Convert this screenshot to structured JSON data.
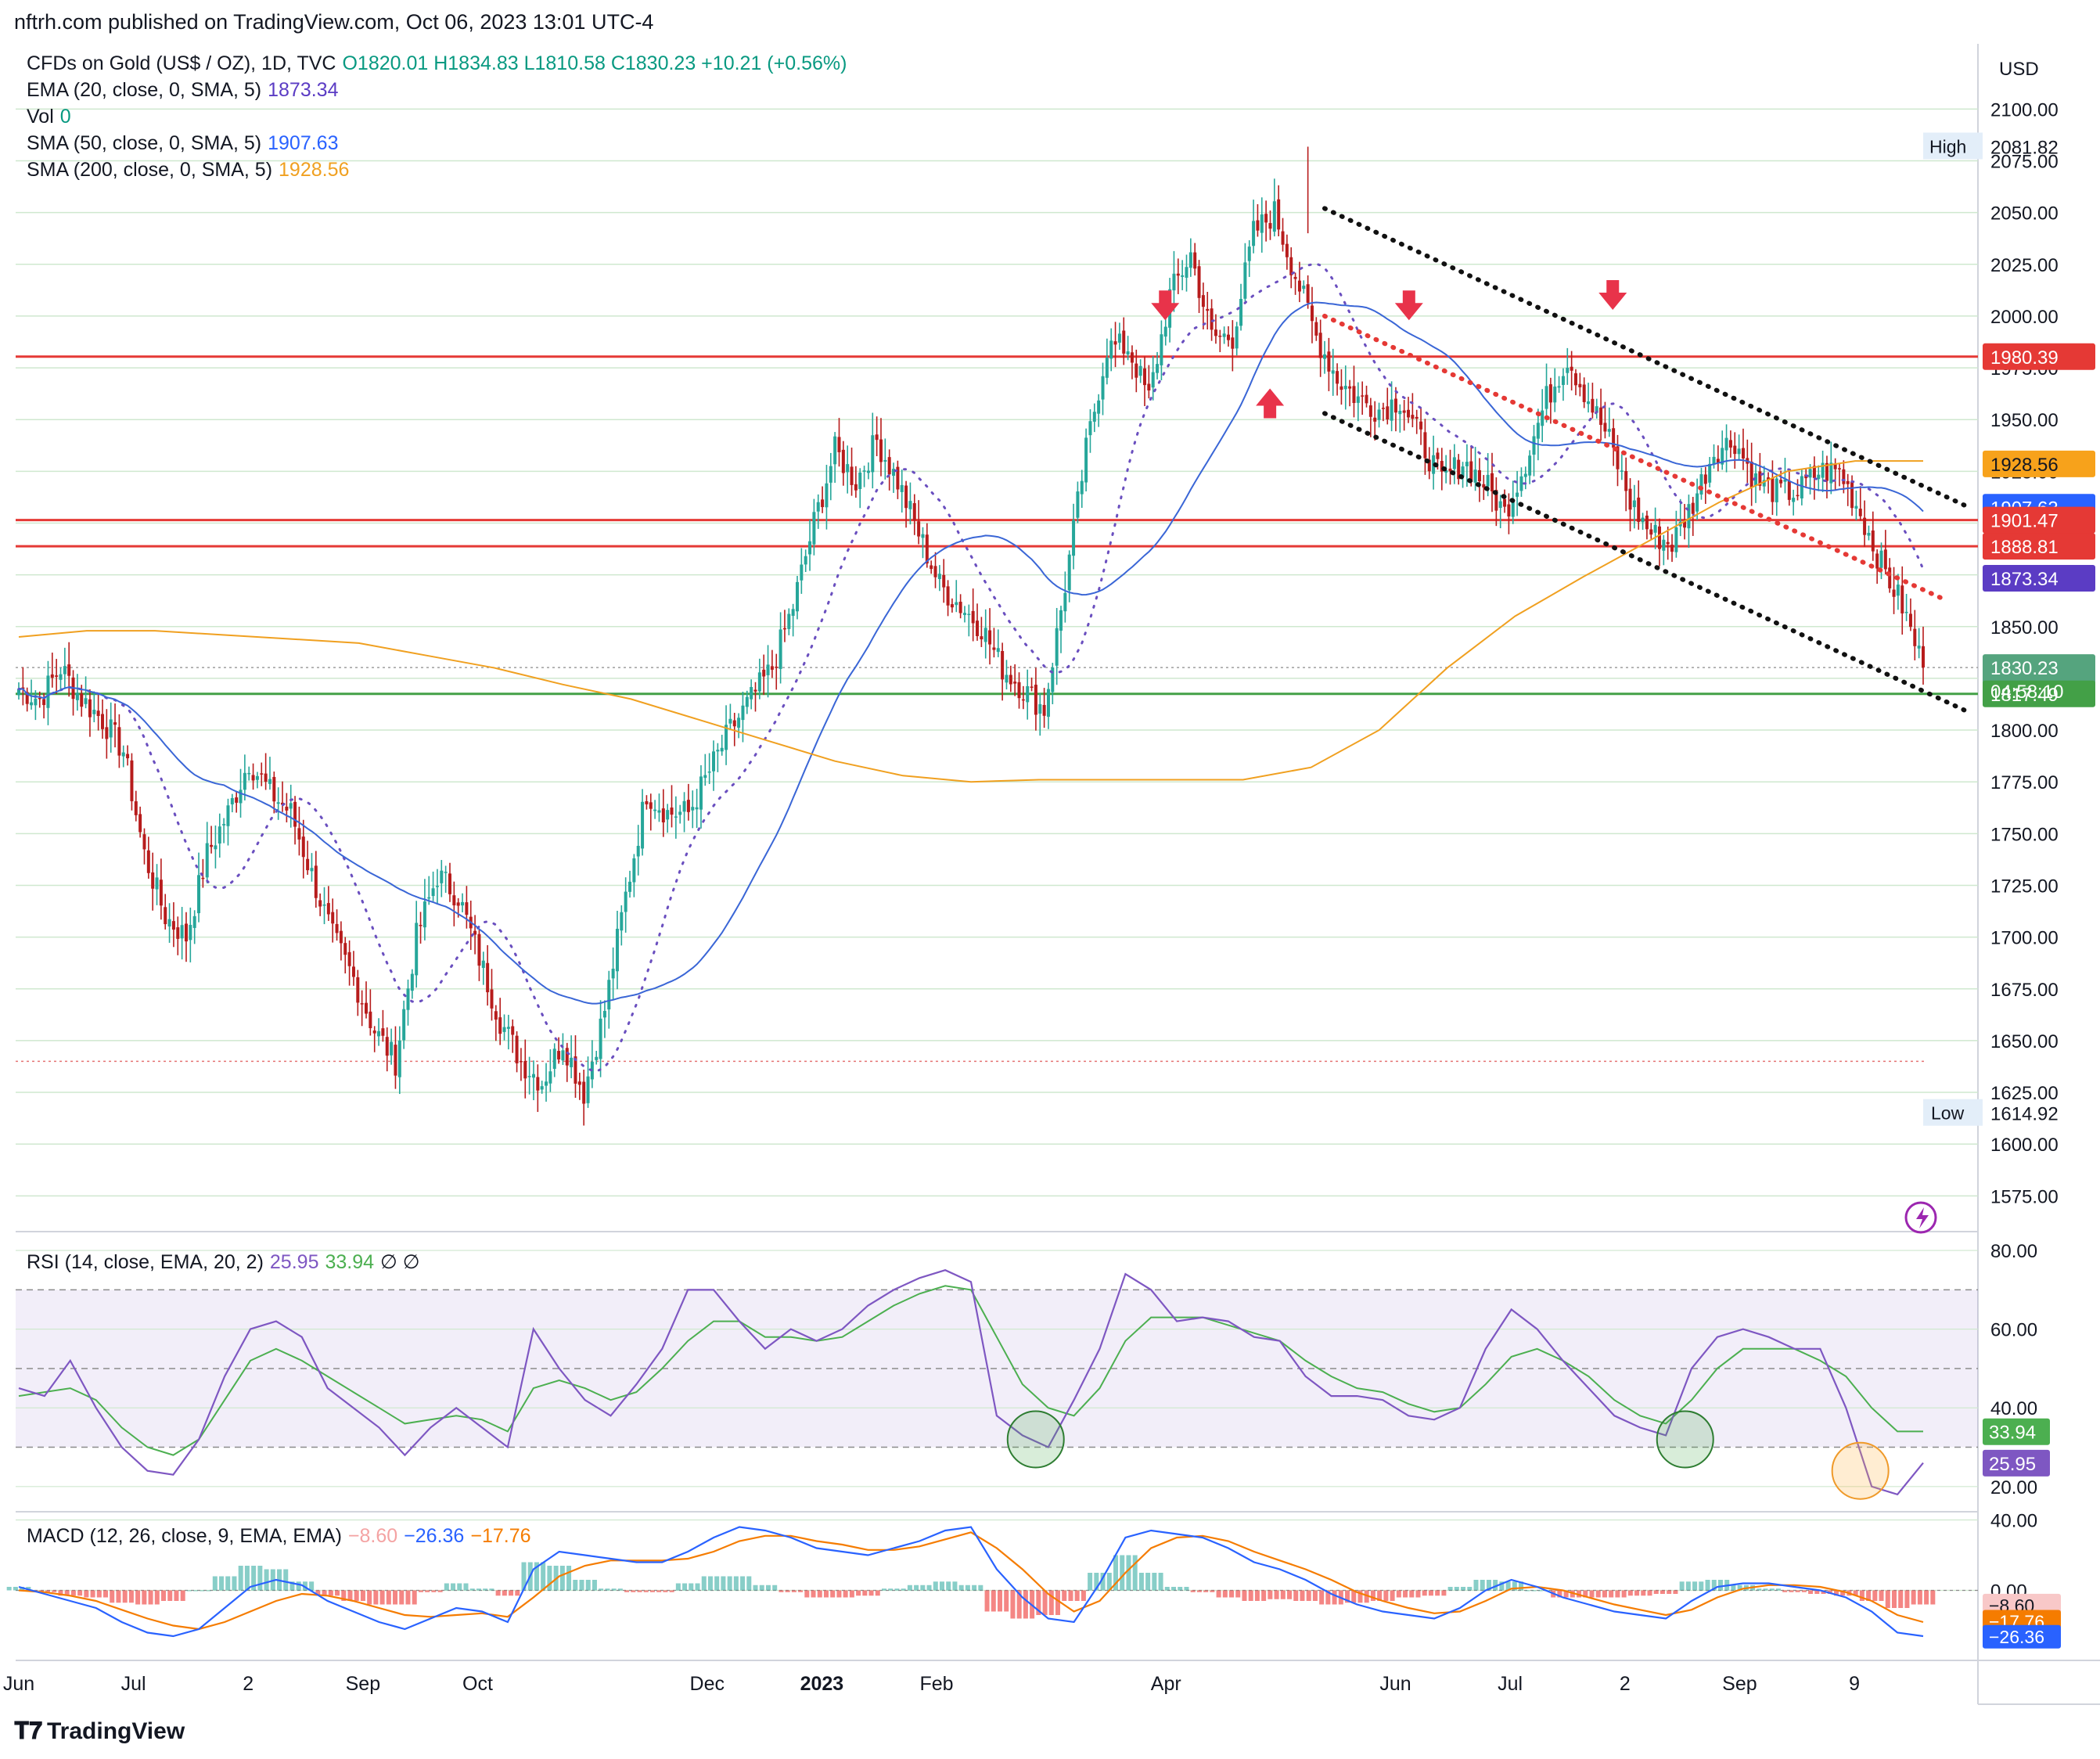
{
  "header": {
    "published": "nftrh.com published on TradingView.com, Oct 06, 2023 13:01 UTC-4"
  },
  "legend": {
    "symbol": "CFDs on Gold (US$ / OZ), 1D, TVC",
    "ohlc": "O1820.01  H1834.83  L1810.58  C1830.23  +10.21 (+0.56%)",
    "ema": "EMA (20, close, 0, SMA, 5)",
    "ema_val": "1873.34",
    "vol": "Vol",
    "vol_val": "0",
    "sma50": "SMA (50, close, 0, SMA, 5)",
    "sma50_val": "1907.63",
    "sma200": "SMA (200, close, 0, SMA, 5)",
    "sma200_val": "1928.56",
    "rsi": "RSI (14, close, EMA, 20, 2)",
    "rsi_val": "25.95",
    "rsi_ma_val": "33.94",
    "rsi_tail": "∅ ∅",
    "macd": "MACD (12, 26, close, 9, EMA, EMA)",
    "macd_hist_val": "−8.60",
    "macd_val": "−26.36",
    "macd_sig_val": "−17.76"
  },
  "currency": "USD",
  "brand": "TradingView",
  "colors": {
    "up": "#26a69a",
    "down": "#b71c1c",
    "ema": "#6a4fbf",
    "sma50": "#3a66d6",
    "sma200": "#f0a020",
    "resistance": "#e53935",
    "support": "#43a047",
    "rsi": "#7e57c2",
    "rsi_ma": "#4caf50",
    "macd": "#2962ff",
    "signal": "#f57c00",
    "hist_pos": "#26a69a",
    "hist_neg": "#ef5350"
  },
  "chart_data": [
    {
      "type": "candlestick",
      "title": "CFDs on Gold (US$ / OZ), 1D, TVC",
      "ylim": [
        1560,
        2130
      ],
      "yticks": [
        1575,
        1600,
        1625,
        1650,
        1675,
        1700,
        1725,
        1750,
        1775,
        1800,
        1825,
        1850,
        1875,
        1900,
        1925,
        1950,
        1975,
        2000,
        2025,
        2050,
        2075,
        2100
      ],
      "x_labels": [
        "Jun",
        "Jul",
        "2",
        "Sep",
        "Oct",
        "Dec",
        "2023",
        "Feb",
        "Apr",
        "Jun",
        "Jul",
        "2",
        "Sep",
        "9"
      ],
      "x_label_month_index": [
        0,
        1,
        2,
        3,
        4,
        6,
        7,
        8,
        10,
        12,
        13,
        14,
        15,
        16
      ],
      "key_points": [
        1820,
        1815,
        1830,
        1815,
        1805,
        1790,
        1740,
        1710,
        1700,
        1740,
        1760,
        1785,
        1770,
        1760,
        1730,
        1700,
        1680,
        1655,
        1640,
        1700,
        1730,
        1720,
        1690,
        1660,
        1640,
        1630,
        1650,
        1625,
        1665,
        1720,
        1770,
        1760,
        1760,
        1780,
        1800,
        1815,
        1830,
        1860,
        1900,
        1935,
        1920,
        1940,
        1920,
        1895,
        1870,
        1860,
        1850,
        1830,
        1820,
        1810,
        1870,
        1935,
        1985,
        1985,
        1960,
        2010,
        2030,
        1990,
        1990,
        2040,
        2050,
        2020,
        1990,
        1970,
        1960,
        1955,
        1960,
        1940,
        1920,
        1930,
        1920,
        1905,
        1930,
        1960,
        1980,
        1960,
        1940,
        1910,
        1895,
        1890,
        1910,
        1935,
        1940,
        1920,
        1915,
        1915,
        1925,
        1925,
        1905,
        1880,
        1860,
        1830
      ],
      "last_close": 1830.23,
      "countdown": "04:58:10",
      "high": {
        "label": "High",
        "value": "2081.82",
        "price": 2081.82
      },
      "low": {
        "label": "Low",
        "value": "1614.92",
        "price": 1614.92
      },
      "price_tags": [
        {
          "value": "1980.39",
          "price": 1980.39,
          "color": "#e53935"
        },
        {
          "value": "1928.56",
          "price": 1928.56,
          "color": "#f7a21b"
        },
        {
          "value": "1907.63",
          "price": 1907.63,
          "color": "#2962ff"
        },
        {
          "value": "1901.47",
          "price": 1901.47,
          "color": "#e53935"
        },
        {
          "value": "1888.81",
          "price": 1888.81,
          "color": "#e53935"
        },
        {
          "value": "1873.34",
          "price": 1873.34,
          "color": "#5b3cc4"
        },
        {
          "value": "1830.23",
          "price": 1830.23,
          "color": "#55a47e"
        },
        {
          "value": "1817.49",
          "price": 1817.49,
          "color": "#43a047"
        }
      ],
      "horizontal_lines": [
        {
          "price": 1980.39,
          "color": "#e53935"
        },
        {
          "price": 1901.47,
          "color": "#e53935"
        },
        {
          "price": 1888.81,
          "color": "#e53935"
        },
        {
          "price": 1817.49,
          "color": "#43a047"
        }
      ],
      "sma200_points": [
        1845,
        1848,
        1848,
        1846,
        1844,
        1842,
        1836,
        1830,
        1822,
        1815,
        1805,
        1795,
        1785,
        1778,
        1775,
        1776,
        1776,
        1776,
        1776,
        1782,
        1800,
        1830,
        1855,
        1874,
        1892,
        1910,
        1925,
        1930,
        1930
      ],
      "arrows": [
        {
          "dir": "down",
          "day_frac": 0.602,
          "price": 2001
        },
        {
          "dir": "up",
          "day_frac": 0.657,
          "price": 1962
        },
        {
          "dir": "down",
          "day_frac": 0.73,
          "price": 2001
        },
        {
          "dir": "down",
          "day_frac": 0.837,
          "price": 2006
        }
      ]
    },
    {
      "type": "line",
      "title": "RSI (14, close, EMA, 20, 2)",
      "ylim": [
        14,
        82
      ],
      "yticks": [
        20,
        40,
        60,
        80
      ],
      "bands": [
        30,
        50,
        70
      ],
      "rsi_points": [
        45,
        43,
        52,
        40,
        30,
        24,
        23,
        32,
        48,
        60,
        62,
        58,
        45,
        40,
        35,
        28,
        35,
        40,
        35,
        30,
        60,
        50,
        42,
        38,
        46,
        55,
        70,
        70,
        62,
        55,
        60,
        57,
        60,
        66,
        70,
        73,
        75,
        72,
        38,
        33,
        30,
        42,
        55,
        74,
        70,
        62,
        63,
        62,
        58,
        57,
        48,
        43,
        43,
        42,
        38,
        37,
        40,
        55,
        65,
        60,
        52,
        45,
        38,
        35,
        33,
        50,
        58,
        60,
        58,
        55,
        55,
        40,
        20,
        18,
        26
      ],
      "rsi_ma_points": [
        43,
        44,
        45,
        42,
        35,
        30,
        28,
        32,
        42,
        52,
        55,
        52,
        48,
        44,
        40,
        36,
        37,
        38,
        37,
        34,
        45,
        47,
        45,
        42,
        44,
        50,
        57,
        62,
        62,
        58,
        58,
        57,
        58,
        62,
        66,
        69,
        71,
        70,
        58,
        46,
        40,
        38,
        45,
        57,
        63,
        63,
        63,
        61,
        59,
        57,
        52,
        48,
        45,
        44,
        41,
        39,
        40,
        46,
        53,
        55,
        52,
        48,
        42,
        38,
        36,
        42,
        50,
        55,
        55,
        55,
        52,
        48,
        40,
        34,
        34
      ],
      "circles": [
        {
          "day_frac": 0.534,
          "value": 32,
          "color": "#2e7d32",
          "fill": "rgba(76,175,80,0.22)"
        },
        {
          "day_frac": 0.875,
          "value": 32,
          "color": "#2e7d32",
          "fill": "rgba(76,175,80,0.22)"
        },
        {
          "day_frac": 0.967,
          "value": 24,
          "color": "#ef9a2a",
          "fill": "rgba(255,183,77,0.25)"
        }
      ],
      "tags": [
        {
          "value": "33.94",
          "num": 33.94,
          "color": "#4caf50"
        },
        {
          "value": "25.95",
          "num": 25.95,
          "color": "#7e57c2"
        }
      ]
    },
    {
      "type": "line",
      "title": "MACD (12, 26, close, 9, EMA, EMA)",
      "ylim": [
        -38,
        42
      ],
      "yticks": [
        0,
        40
      ],
      "ytick_labels": [
        "0.00",
        "40.00"
      ],
      "macd_points": [
        2,
        -2,
        -6,
        -10,
        -18,
        -24,
        -26,
        -22,
        -10,
        2,
        6,
        3,
        -6,
        -12,
        -18,
        -22,
        -16,
        -10,
        -12,
        -18,
        12,
        22,
        20,
        18,
        16,
        16,
        22,
        30,
        36,
        34,
        30,
        24,
        22,
        20,
        24,
        28,
        34,
        36,
        12,
        -4,
        -16,
        -18,
        4,
        30,
        34,
        32,
        30,
        24,
        16,
        12,
        6,
        -2,
        -8,
        -12,
        -14,
        -16,
        -10,
        0,
        6,
        2,
        -4,
        -8,
        -12,
        -14,
        -16,
        -6,
        2,
        4,
        4,
        2,
        0,
        -4,
        -12,
        -24,
        -26
      ],
      "signal_points": [
        0,
        -1,
        -3,
        -6,
        -11,
        -16,
        -20,
        -22,
        -18,
        -12,
        -6,
        -2,
        -3,
        -6,
        -10,
        -14,
        -15,
        -14,
        -13,
        -15,
        -4,
        8,
        14,
        17,
        17,
        17,
        18,
        22,
        28,
        31,
        31,
        28,
        26,
        23,
        23,
        25,
        29,
        33,
        24,
        12,
        -2,
        -12,
        -6,
        10,
        24,
        30,
        31,
        28,
        22,
        17,
        12,
        6,
        -1,
        -6,
        -10,
        -13,
        -12,
        -6,
        1,
        2,
        0,
        -4,
        -8,
        -11,
        -14,
        -11,
        -4,
        1,
        3,
        3,
        2,
        -1,
        -6,
        -14,
        -18
      ],
      "tags": [
        {
          "value": "−8.60",
          "num": -8.6,
          "color": "#f8c8c8",
          "text": "#131722"
        },
        {
          "value": "−17.76",
          "num": -17.76,
          "color": "#f57c00",
          "text": "#ffffff"
        },
        {
          "value": "−26.36",
          "num": -26.36,
          "color": "#2962ff",
          "text": "#ffffff"
        }
      ]
    }
  ]
}
